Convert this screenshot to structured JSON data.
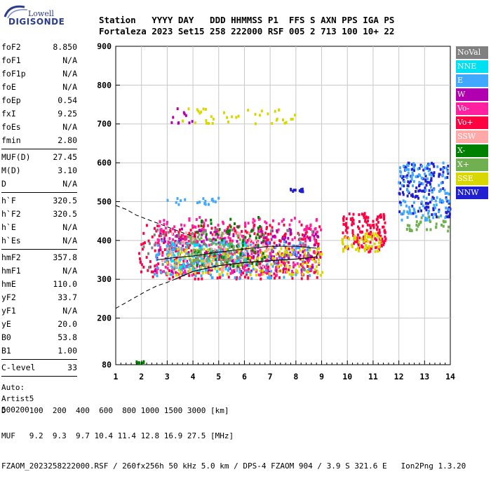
{
  "logo": {
    "line1": "Lowell",
    "line2": "DIGISONDE"
  },
  "header": {
    "row1": "Station   YYYY DAY   DDD HHMMSS P1  FFS S AXN PPS IGA PS",
    "row2": "Fortaleza 2023 Set15 258 222000 RSF 005 2 713 100 10+ 22"
  },
  "params": {
    "group1": [
      {
        "label": "foF2",
        "value": "8.850"
      },
      {
        "label": "foF1",
        "value": "N/A"
      },
      {
        "label": "foF1p",
        "value": "N/A"
      },
      {
        "label": "foE",
        "value": "N/A"
      },
      {
        "label": "foEp",
        "value": "0.54"
      },
      {
        "label": "fxI",
        "value": "9.25"
      },
      {
        "label": "foEs",
        "value": "N/A"
      },
      {
        "label": "fmin",
        "value": "2.80"
      }
    ],
    "group2": [
      {
        "label": "MUF(D)",
        "value": "27.45"
      },
      {
        "label": "M(D)",
        "value": "3.10"
      },
      {
        "label": "D",
        "value": "N/A"
      }
    ],
    "group3": [
      {
        "label": "h`F",
        "value": "320.5"
      },
      {
        "label": "h`F2",
        "value": "320.5"
      },
      {
        "label": "h`E",
        "value": "N/A"
      },
      {
        "label": "h`Es",
        "value": "N/A"
      }
    ],
    "group4": [
      {
        "label": "hmF2",
        "value": "357.8"
      },
      {
        "label": "hmF1",
        "value": "N/A"
      },
      {
        "label": "hmE",
        "value": "110.0"
      },
      {
        "label": "yF2",
        "value": "33.7"
      },
      {
        "label": "yF1",
        "value": "N/A"
      },
      {
        "label": "yE",
        "value": "20.0"
      },
      {
        "label": "B0",
        "value": "53.8"
      },
      {
        "label": "B1",
        "value": "1.00"
      }
    ],
    "group5": [
      {
        "label": "C-level",
        "value": "33"
      }
    ],
    "auto_lines": [
      "Auto:",
      "Artist5",
      "500200"
    ]
  },
  "legend": [
    {
      "label": "NoVal",
      "color": "#808080"
    },
    {
      "label": "NNE",
      "color": "#00e0f0"
    },
    {
      "label": "E",
      "color": "#40a8ff"
    },
    {
      "label": "W",
      "color": "#b000b0"
    },
    {
      "label": "Vo-",
      "color": "#ff20a0"
    },
    {
      "label": "Vo+",
      "color": "#ff0040"
    },
    {
      "label": "SSW",
      "color": "#ffa8a8"
    },
    {
      "label": "X-",
      "color": "#008000"
    },
    {
      "label": "X+",
      "color": "#70b050"
    },
    {
      "label": "SSE",
      "color": "#d8d800"
    },
    {
      "label": "NNW",
      "color": "#2020d0"
    }
  ],
  "bottom": {
    "row1": "D     100  200  400  600  800 1000 1500 3000 [km]",
    "row2": "MUF   9.2  9.3  9.7 10.4 11.4 12.8 16.9 27.5 [MHz]",
    "row3": "FZAOM_2023258222000.RSF / 260fx256h 50 kHz 5.0 km / DPS-4 FZAOM 904 / 3.9 S 321.6 E   Ion2Png 1.3.20"
  },
  "chart_data": {
    "type": "scatter",
    "xlim": [
      1,
      14
    ],
    "ylim": [
      80,
      900
    ],
    "x_ticks": [
      1,
      2,
      3,
      4,
      5,
      6,
      7,
      8,
      9,
      10,
      11,
      12,
      13,
      14
    ],
    "y_ticks": [
      80,
      200,
      300,
      400,
      500,
      600,
      700,
      800,
      900
    ],
    "grid": true,
    "legend_position": "right",
    "clusters": [
      {
        "series": "Vo+",
        "x": [
          1.9,
          9.0
        ],
        "y": [
          300,
          440
        ],
        "n": 360
      },
      {
        "series": "Vo-",
        "x": [
          2.5,
          9.0
        ],
        "y": [
          310,
          460
        ],
        "n": 320
      },
      {
        "series": "W",
        "x": [
          2.5,
          8.9
        ],
        "y": [
          320,
          430
        ],
        "n": 180
      },
      {
        "series": "E",
        "x": [
          2.5,
          8.6
        ],
        "y": [
          300,
          400
        ],
        "n": 160
      },
      {
        "series": "NNE",
        "x": [
          3.0,
          6.2
        ],
        "y": [
          320,
          400
        ],
        "n": 90
      },
      {
        "series": "SSE",
        "x": [
          3.0,
          9.1
        ],
        "y": [
          310,
          380
        ],
        "n": 160
      },
      {
        "series": "X-",
        "x": [
          4.0,
          6.8
        ],
        "y": [
          330,
          460
        ],
        "n": 70
      },
      {
        "series": "X+",
        "x": [
          3.8,
          6.0
        ],
        "y": [
          330,
          420
        ],
        "n": 60
      },
      {
        "series": "SSW",
        "x": [
          2.8,
          7.0
        ],
        "y": [
          320,
          420
        ],
        "n": 80
      },
      {
        "series": "NoVal",
        "x": [
          2.0,
          8.8
        ],
        "y": [
          320,
          430
        ],
        "n": 70
      },
      {
        "series": "Vo+",
        "x": [
          9.8,
          11.5
        ],
        "y": [
          370,
          470
        ],
        "n": 140
      },
      {
        "series": "SSE",
        "x": [
          9.8,
          11.3
        ],
        "y": [
          370,
          420
        ],
        "n": 60
      },
      {
        "series": "E",
        "x": [
          12.0,
          14.0
        ],
        "y": [
          450,
          600
        ],
        "n": 120
      },
      {
        "series": "NNW",
        "x": [
          12.0,
          14.0
        ],
        "y": [
          460,
          600
        ],
        "n": 140
      },
      {
        "series": "X+",
        "x": [
          12.3,
          14.0
        ],
        "y": [
          420,
          460
        ],
        "n": 30
      },
      {
        "series": "E",
        "x": [
          3.0,
          5.0
        ],
        "y": [
          490,
          510
        ],
        "n": 18
      },
      {
        "series": "SSE",
        "x": [
          3.5,
          8.0
        ],
        "y": [
          700,
          740
        ],
        "n": 40
      },
      {
        "series": "W",
        "x": [
          3.0,
          4.0
        ],
        "y": [
          700,
          740
        ],
        "n": 10
      },
      {
        "series": "NNW",
        "x": [
          7.8,
          8.3
        ],
        "y": [
          525,
          535
        ],
        "n": 14
      },
      {
        "series": "X-",
        "x": [
          1.8,
          2.1
        ],
        "y": [
          82,
          88
        ],
        "n": 8
      }
    ],
    "trace_upper_dashed": {
      "x": [
        1.0,
        1.4,
        1.8,
        2.2,
        2.6,
        3.0,
        3.4,
        3.8,
        4.1
      ],
      "y": [
        490,
        480,
        465,
        455,
        445,
        435,
        425,
        415,
        410
      ]
    },
    "trace_lower_dashed": {
      "x": [
        1.0,
        1.4,
        1.8,
        2.2,
        2.6,
        3.0,
        3.3
      ],
      "y": [
        225,
        240,
        255,
        270,
        283,
        292,
        300
      ]
    },
    "trace_solid": {
      "x": [
        3.3,
        4.0,
        5.0,
        6.0,
        7.0,
        8.0,
        8.6,
        8.8,
        8.85
      ],
      "y": [
        300,
        320,
        335,
        343,
        348,
        352,
        356,
        358,
        368
      ]
    },
    "profile_curve": {
      "x": [
        2.6,
        3.2,
        4.0,
        5.0,
        6.0,
        7.0,
        8.0,
        8.8
      ],
      "y": [
        350,
        355,
        360,
        370,
        378,
        385,
        385,
        380
      ]
    }
  }
}
